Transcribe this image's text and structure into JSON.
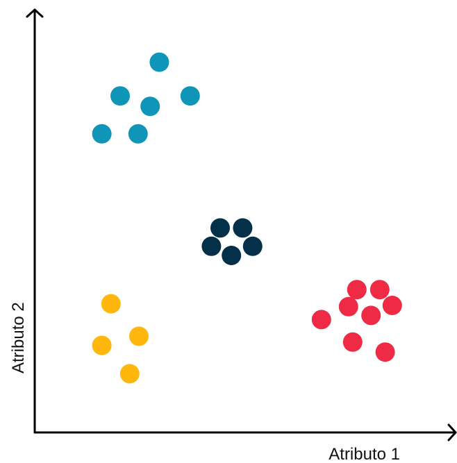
{
  "chart_data": {
    "type": "scatter",
    "title": "",
    "xlabel": "Atributo 1",
    "ylabel": "Atributo 2",
    "xlim": [
      0,
      10
    ],
    "ylim": [
      0,
      10
    ],
    "grid": false,
    "legend": "none",
    "series": [
      {
        "color": "#0f95b8",
        "points": [
          {
            "x": 2.99,
            "y": 8.84
          },
          {
            "x": 2.05,
            "y": 8.03
          },
          {
            "x": 2.77,
            "y": 7.78
          },
          {
            "x": 3.73,
            "y": 8.03
          },
          {
            "x": 1.61,
            "y": 7.12
          },
          {
            "x": 2.48,
            "y": 7.12
          }
        ]
      },
      {
        "color": "#04304a",
        "points": [
          {
            "x": 4.45,
            "y": 4.86
          },
          {
            "x": 4.99,
            "y": 4.86
          },
          {
            "x": 4.24,
            "y": 4.42
          },
          {
            "x": 5.23,
            "y": 4.42
          },
          {
            "x": 4.72,
            "y": 4.2
          }
        ]
      },
      {
        "color": "#ffb60d",
        "points": [
          {
            "x": 1.83,
            "y": 3.04
          },
          {
            "x": 2.5,
            "y": 2.26
          },
          {
            "x": 1.61,
            "y": 2.04
          },
          {
            "x": 2.28,
            "y": 1.36
          }
        ]
      },
      {
        "color": "#ef2a45",
        "points": [
          {
            "x": 7.73,
            "y": 3.38
          },
          {
            "x": 8.28,
            "y": 3.38
          },
          {
            "x": 7.53,
            "y": 2.97
          },
          {
            "x": 8.58,
            "y": 3.0
          },
          {
            "x": 8.07,
            "y": 2.76
          },
          {
            "x": 6.88,
            "y": 2.66
          },
          {
            "x": 7.63,
            "y": 2.12
          },
          {
            "x": 8.41,
            "y": 1.88
          }
        ]
      }
    ]
  }
}
